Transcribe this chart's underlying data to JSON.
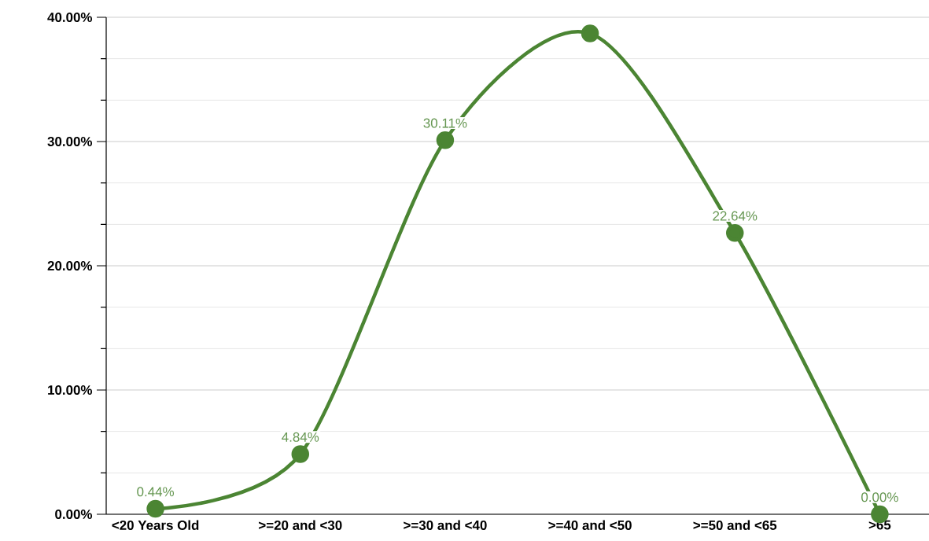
{
  "chart_data": {
    "type": "line",
    "categories": [
      "<20 Years Old",
      ">=20 and <30",
      ">=30 and <40",
      ">=40 and <50",
      ">=50 and <65",
      ">65"
    ],
    "series": [
      {
        "color": "#4b8533",
        "values": [
          0.44,
          4.84,
          30.11,
          38.7,
          22.64,
          0.0
        ],
        "value_labels": [
          "0.44%",
          "4.84%",
          "30.11%",
          null,
          "22.64%",
          "0.00%"
        ]
      }
    ],
    "ylim": [
      0,
      40
    ],
    "yticks": [
      {
        "value": 0,
        "label": "0.00%"
      },
      {
        "value": 3.33,
        "label": null
      },
      {
        "value": 6.67,
        "label": null
      },
      {
        "value": 10,
        "label": "10.00%"
      },
      {
        "value": 13.33,
        "label": null
      },
      {
        "value": 16.67,
        "label": null
      },
      {
        "value": 20,
        "label": "20.00%"
      },
      {
        "value": 23.33,
        "label": null
      },
      {
        "value": 26.67,
        "label": null
      },
      {
        "value": 30,
        "label": "30.00%"
      },
      {
        "value": 33.33,
        "label": null
      },
      {
        "value": 36.67,
        "label": null
      },
      {
        "value": 40,
        "label": "40.00%"
      }
    ],
    "grid": "y",
    "marker": "circle",
    "line_style": "solid"
  }
}
